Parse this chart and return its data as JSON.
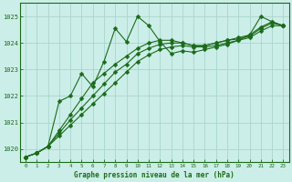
{
  "title": "Graphe pression niveau de la mer (hPa)",
  "bg_color": "#cceee8",
  "grid_color": "#aad4ce",
  "line_color": "#1a6b1a",
  "spine_color": "#1a6b1a",
  "xlim": [
    -0.5,
    23.5
  ],
  "ylim": [
    1019.5,
    1025.5
  ],
  "yticks": [
    1020,
    1021,
    1022,
    1023,
    1024,
    1025
  ],
  "xticks": [
    0,
    1,
    2,
    3,
    4,
    5,
    6,
    7,
    8,
    9,
    10,
    11,
    12,
    13,
    14,
    15,
    16,
    17,
    18,
    19,
    20,
    21,
    22,
    23
  ],
  "series": [
    [
      1019.7,
      1019.85,
      1020.1,
      1021.8,
      1022.0,
      1022.85,
      1022.35,
      1023.3,
      1024.55,
      1024.05,
      1025.0,
      1024.65,
      1024.05,
      1023.6,
      1023.7,
      1023.65,
      1023.75,
      1023.85,
      1023.95,
      1024.1,
      1024.3,
      1025.0,
      1024.8,
      1024.65
    ],
    [
      1019.7,
      1019.85,
      1020.1,
      1020.5,
      1020.9,
      1021.3,
      1021.7,
      1022.1,
      1022.5,
      1022.9,
      1023.3,
      1023.55,
      1023.75,
      1023.85,
      1023.9,
      1023.85,
      1023.85,
      1023.9,
      1024.0,
      1024.1,
      1024.2,
      1024.45,
      1024.65,
      1024.65
    ],
    [
      1019.7,
      1019.85,
      1020.1,
      1020.6,
      1021.1,
      1021.55,
      1022.0,
      1022.45,
      1022.9,
      1023.2,
      1023.6,
      1023.8,
      1023.95,
      1024.0,
      1024.0,
      1023.9,
      1023.9,
      1024.0,
      1024.1,
      1024.15,
      1024.25,
      1024.55,
      1024.75,
      1024.65
    ],
    [
      1019.7,
      1019.85,
      1020.1,
      1020.7,
      1021.3,
      1021.9,
      1022.5,
      1022.85,
      1023.2,
      1023.5,
      1023.8,
      1024.0,
      1024.1,
      1024.1,
      1024.0,
      1023.9,
      1023.9,
      1024.0,
      1024.1,
      1024.2,
      1024.3,
      1024.6,
      1024.8,
      1024.65
    ]
  ],
  "marker": "D",
  "marker_size": 2.5,
  "linewidth": 0.8
}
